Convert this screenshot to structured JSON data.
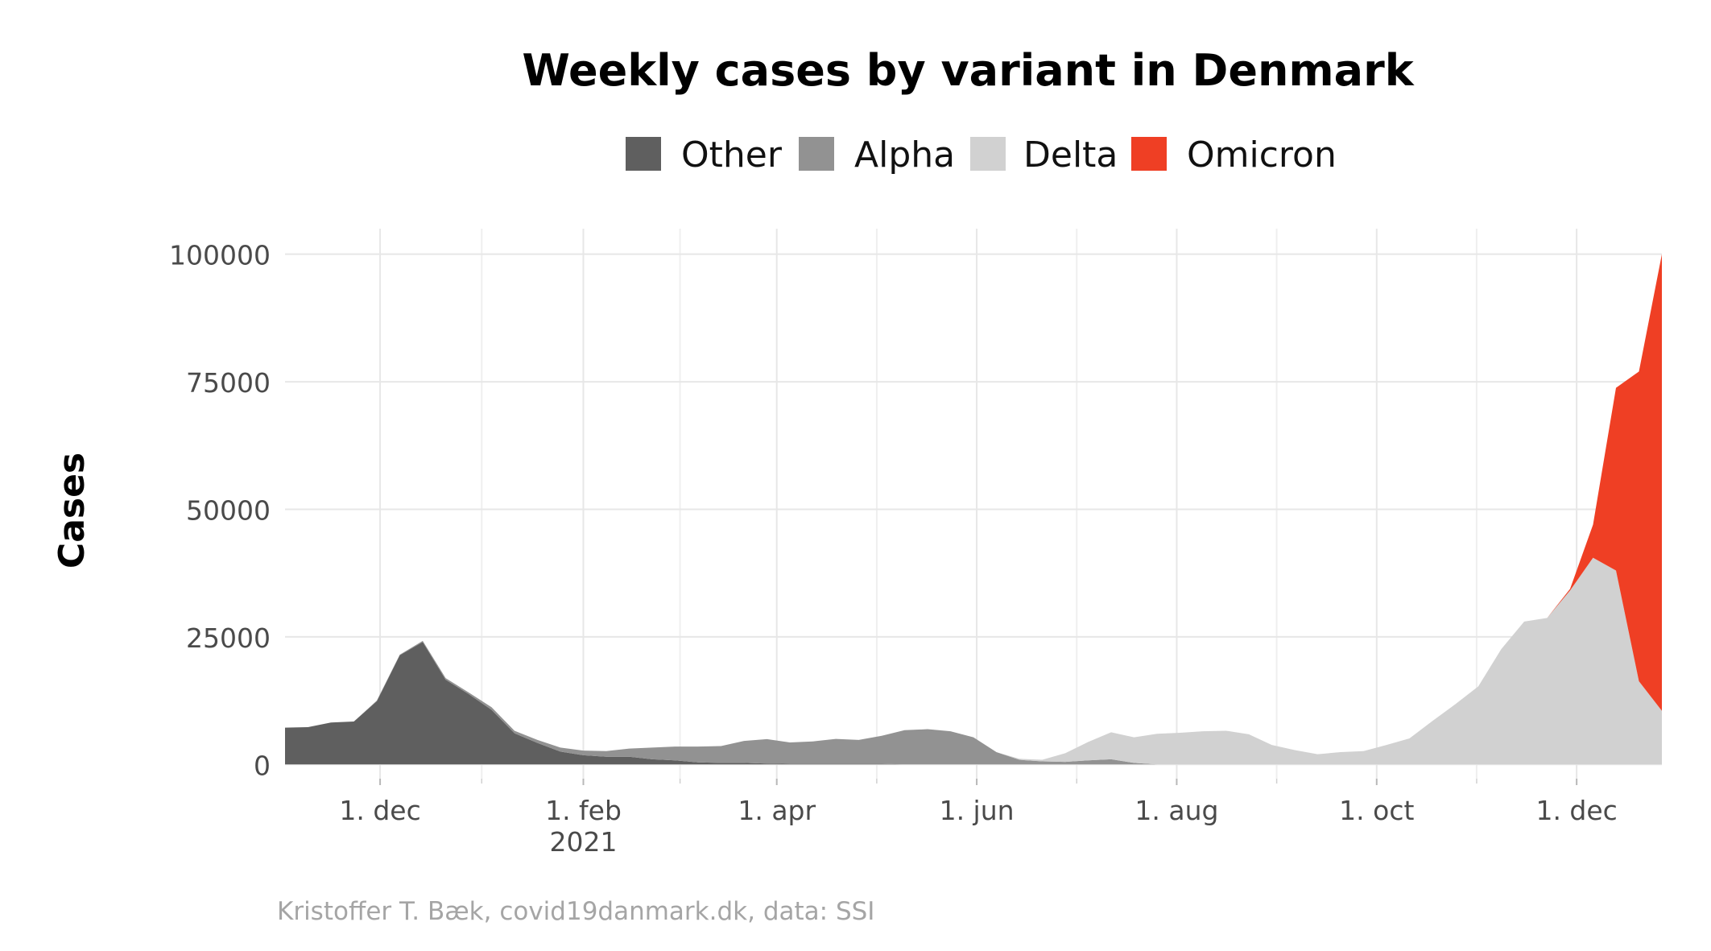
{
  "chart_data": {
    "type": "area",
    "stacked": true,
    "title": "Weekly cases by variant in Denmark",
    "xlabel": "",
    "ylabel": "Cases",
    "caption": "Kristoffer T. Bæk, covid19danmark.dk, data: SSI",
    "x_ticks": [
      {
        "date": "2020-12-01",
        "label": "1. dec",
        "sublabel": ""
      },
      {
        "date": "2021-02-01",
        "label": "1. feb",
        "sublabel": "2021"
      },
      {
        "date": "2021-04-01",
        "label": "1. apr",
        "sublabel": ""
      },
      {
        "date": "2021-06-01",
        "label": "1. jun",
        "sublabel": ""
      },
      {
        "date": "2021-08-01",
        "label": "1. aug",
        "sublabel": ""
      },
      {
        "date": "2021-10-01",
        "label": "1. oct",
        "sublabel": ""
      },
      {
        "date": "2021-12-01",
        "label": "1. dec",
        "sublabel": ""
      }
    ],
    "y_ticks": [
      {
        "value": 0,
        "label": "0"
      },
      {
        "value": 25000,
        "label": "25000"
      },
      {
        "value": 50000,
        "label": "50000"
      },
      {
        "value": 75000,
        "label": "75000"
      },
      {
        "value": 100000,
        "label": "100000"
      }
    ],
    "xlim": [
      "2020-11-02",
      "2021-12-27"
    ],
    "ylim": [
      -2800,
      105000
    ],
    "grid": true,
    "legend_position": "top",
    "x": [
      "2020-11-02",
      "2020-11-09",
      "2020-11-16",
      "2020-11-23",
      "2020-11-30",
      "2020-12-07",
      "2020-12-14",
      "2020-12-21",
      "2020-12-28",
      "2021-01-04",
      "2021-01-11",
      "2021-01-18",
      "2021-01-25",
      "2021-02-01",
      "2021-02-08",
      "2021-02-15",
      "2021-02-22",
      "2021-03-01",
      "2021-03-08",
      "2021-03-15",
      "2021-03-22",
      "2021-03-29",
      "2021-04-05",
      "2021-04-12",
      "2021-04-19",
      "2021-04-26",
      "2021-05-03",
      "2021-05-10",
      "2021-05-17",
      "2021-05-24",
      "2021-05-31",
      "2021-06-07",
      "2021-06-14",
      "2021-06-21",
      "2021-06-28",
      "2021-07-05",
      "2021-07-12",
      "2021-07-19",
      "2021-07-26",
      "2021-08-02",
      "2021-08-09",
      "2021-08-16",
      "2021-08-23",
      "2021-08-30",
      "2021-09-06",
      "2021-09-13",
      "2021-09-20",
      "2021-09-27",
      "2021-10-04",
      "2021-10-11",
      "2021-10-18",
      "2021-10-25",
      "2021-11-01",
      "2021-11-08",
      "2021-11-15",
      "2021-11-22",
      "2021-11-29",
      "2021-12-06",
      "2021-12-13",
      "2021-12-20",
      "2021-12-27"
    ],
    "series": [
      {
        "name": "Other",
        "color": "#5f5f5f",
        "values": [
          7200,
          7300,
          8200,
          8400,
          12400,
          21400,
          24000,
          16600,
          13800,
          10700,
          6100,
          4200,
          2500,
          1800,
          1500,
          1500,
          1000,
          800,
          400,
          300,
          300,
          150,
          100,
          100,
          100,
          100,
          100,
          0,
          0,
          0,
          0,
          0,
          0,
          0,
          0,
          0,
          0,
          0,
          0,
          0,
          0,
          0,
          0,
          0,
          0,
          0,
          0,
          0,
          0,
          0,
          0,
          0,
          0,
          0,
          0,
          0,
          0,
          0,
          0,
          0,
          0
        ]
      },
      {
        "name": "Alpha",
        "color": "#929292",
        "values": [
          0,
          0,
          0,
          0,
          100,
          100,
          200,
          300,
          300,
          500,
          500,
          600,
          800,
          900,
          1100,
          1600,
          2300,
          2700,
          3100,
          3300,
          4300,
          4800,
          4200,
          4400,
          4900,
          4700,
          5500,
          6700,
          6900,
          6500,
          5300,
          2400,
          900,
          600,
          500,
          800,
          1000,
          300,
          0,
          0,
          0,
          0,
          0,
          0,
          0,
          0,
          0,
          0,
          0,
          0,
          0,
          0,
          0,
          0,
          0,
          0,
          0,
          0,
          0,
          0,
          0
        ]
      },
      {
        "name": "Delta",
        "color": "#d1d1d1",
        "values": [
          0,
          0,
          0,
          0,
          0,
          0,
          0,
          0,
          0,
          0,
          0,
          0,
          0,
          0,
          0,
          0,
          0,
          0,
          0,
          0,
          0,
          0,
          0,
          0,
          0,
          0,
          0,
          0,
          0,
          0,
          0,
          0,
          200,
          300,
          1700,
          3600,
          5300,
          5000,
          6000,
          6200,
          6500,
          6600,
          5900,
          3800,
          2800,
          2000,
          2400,
          2600,
          3800,
          5100,
          8500,
          11800,
          15300,
          22600,
          28000,
          28700,
          34100,
          40500,
          38000,
          16300,
          10500
        ]
      },
      {
        "name": "Omicron",
        "color": "#ef3f24",
        "values": [
          0,
          0,
          0,
          0,
          0,
          0,
          0,
          0,
          0,
          0,
          0,
          0,
          0,
          0,
          0,
          0,
          0,
          0,
          0,
          0,
          0,
          0,
          0,
          0,
          0,
          0,
          0,
          0,
          0,
          0,
          0,
          0,
          0,
          0,
          0,
          0,
          0,
          0,
          0,
          0,
          0,
          0,
          0,
          0,
          0,
          0,
          0,
          0,
          0,
          0,
          0,
          0,
          0,
          0,
          0,
          0,
          300,
          6500,
          35800,
          60700,
          89500
        ]
      }
    ]
  }
}
